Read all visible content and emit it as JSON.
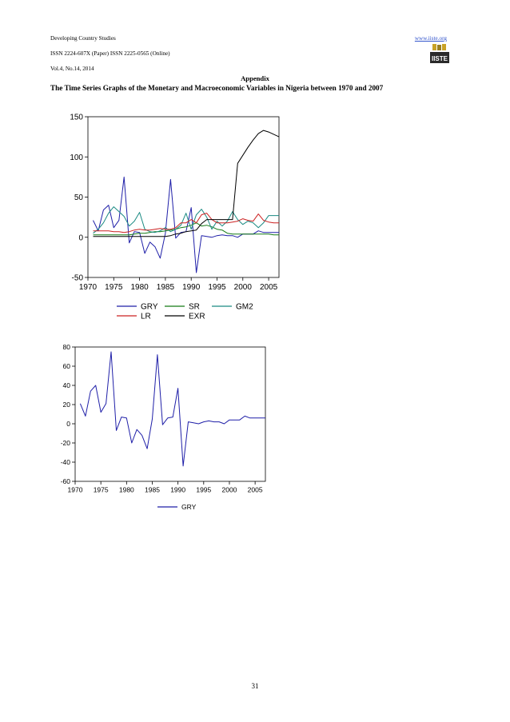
{
  "header": {
    "journal": "Developing Country Studies",
    "issn": "ISSN 2224-607X (Paper) ISSN 2225-0565 (Online)",
    "volume": "Vol.4, No.14, 2014",
    "website": "www.iiste.org",
    "logo_text": "IISTE"
  },
  "appendix_title": "Appendix",
  "section_title": "The Time Series Graphs of the Monetary and Macroeconomic Variables in Nigeria between 1970 and 2007",
  "page_number": "31",
  "chart_data": [
    {
      "type": "line",
      "title": "",
      "xlabel": "",
      "ylabel": "",
      "x": [
        1971,
        1972,
        1973,
        1974,
        1975,
        1976,
        1977,
        1978,
        1979,
        1980,
        1981,
        1982,
        1983,
        1984,
        1985,
        1986,
        1987,
        1988,
        1989,
        1990,
        1991,
        1992,
        1993,
        1994,
        1995,
        1996,
        1997,
        1998,
        1999,
        2000,
        2001,
        2002,
        2003,
        2004,
        2005,
        2006,
        2007
      ],
      "xlim": [
        1970,
        2007
      ],
      "ylim": [
        -50,
        150
      ],
      "x_ticks": [
        1970,
        1975,
        1980,
        1985,
        1990,
        1995,
        2000,
        2005
      ],
      "y_ticks": [
        -50,
        0,
        50,
        100,
        150
      ],
      "grid": false,
      "legend": "below",
      "series": [
        {
          "name": "GRY",
          "color": "#1f1fa8",
          "values": [
            21,
            8,
            34,
            40,
            12,
            21,
            75,
            -7,
            7,
            6,
            -20,
            -6,
            -12,
            -26,
            5,
            72,
            -1,
            6,
            7,
            37,
            -44,
            2,
            1,
            0,
            2,
            3,
            2,
            2,
            0,
            4,
            4,
            4,
            8,
            6,
            6,
            6,
            6
          ]
        },
        {
          "name": "SR",
          "color": "#157a15",
          "values": [
            3,
            3,
            3,
            3,
            3,
            3,
            3,
            3,
            4,
            5,
            5,
            6,
            7,
            7,
            8,
            9,
            10,
            12,
            13,
            15,
            18,
            14,
            15,
            13,
            10,
            9,
            5,
            4,
            4,
            4,
            4,
            4,
            4,
            4,
            4,
            3,
            3
          ]
        },
        {
          "name": "GM2",
          "color": "#1a8a82",
          "values": [
            5,
            10,
            18,
            30,
            38,
            32,
            26,
            14,
            20,
            31,
            10,
            7,
            6,
            8,
            12,
            7,
            10,
            15,
            30,
            10,
            28,
            35,
            25,
            10,
            20,
            14,
            20,
            32,
            22,
            16,
            20,
            18,
            12,
            18,
            27,
            27,
            27
          ]
        },
        {
          "name": "LR",
          "color": "#cc2020",
          "values": [
            8,
            8,
            8,
            8,
            7,
            7,
            6,
            7,
            9,
            10,
            9,
            9,
            10,
            11,
            10,
            10,
            12,
            18,
            18,
            22,
            18,
            28,
            30,
            22,
            18,
            18,
            18,
            19,
            20,
            23,
            21,
            20,
            29,
            21,
            19,
            18,
            18
          ]
        },
        {
          "name": "EXR",
          "color": "#000000",
          "values": [
            1,
            1,
            1,
            1,
            1,
            1,
            1,
            1,
            1,
            1,
            1,
            1,
            1,
            1,
            1,
            2,
            4,
            5,
            7,
            8,
            9,
            17,
            22,
            22,
            22,
            22,
            22,
            22,
            92,
            102,
            112,
            121,
            129,
            133,
            131,
            128,
            125
          ]
        }
      ]
    },
    {
      "type": "line",
      "title": "",
      "xlabel": "",
      "ylabel": "",
      "x": [
        1971,
        1972,
        1973,
        1974,
        1975,
        1976,
        1977,
        1978,
        1979,
        1980,
        1981,
        1982,
        1983,
        1984,
        1985,
        1986,
        1987,
        1988,
        1989,
        1990,
        1991,
        1992,
        1993,
        1994,
        1995,
        1996,
        1997,
        1998,
        1999,
        2000,
        2001,
        2002,
        2003,
        2004,
        2005,
        2006,
        2007
      ],
      "xlim": [
        1970,
        2007
      ],
      "ylim": [
        -60,
        80
      ],
      "x_ticks": [
        1970,
        1975,
        1980,
        1985,
        1990,
        1995,
        2000,
        2005
      ],
      "y_ticks": [
        -60,
        -40,
        -20,
        0,
        20,
        40,
        60,
        80
      ],
      "grid": false,
      "legend": "below",
      "series": [
        {
          "name": "GRY",
          "color": "#1f1fa8",
          "values": [
            21,
            8,
            34,
            40,
            12,
            21,
            75,
            -7,
            7,
            6,
            -20,
            -6,
            -12,
            -26,
            5,
            72,
            -1,
            6,
            7,
            37,
            -44,
            2,
            1,
            0,
            2,
            3,
            2,
            2,
            0,
            4,
            4,
            4,
            8,
            6,
            6,
            6,
            6
          ]
        }
      ]
    }
  ]
}
